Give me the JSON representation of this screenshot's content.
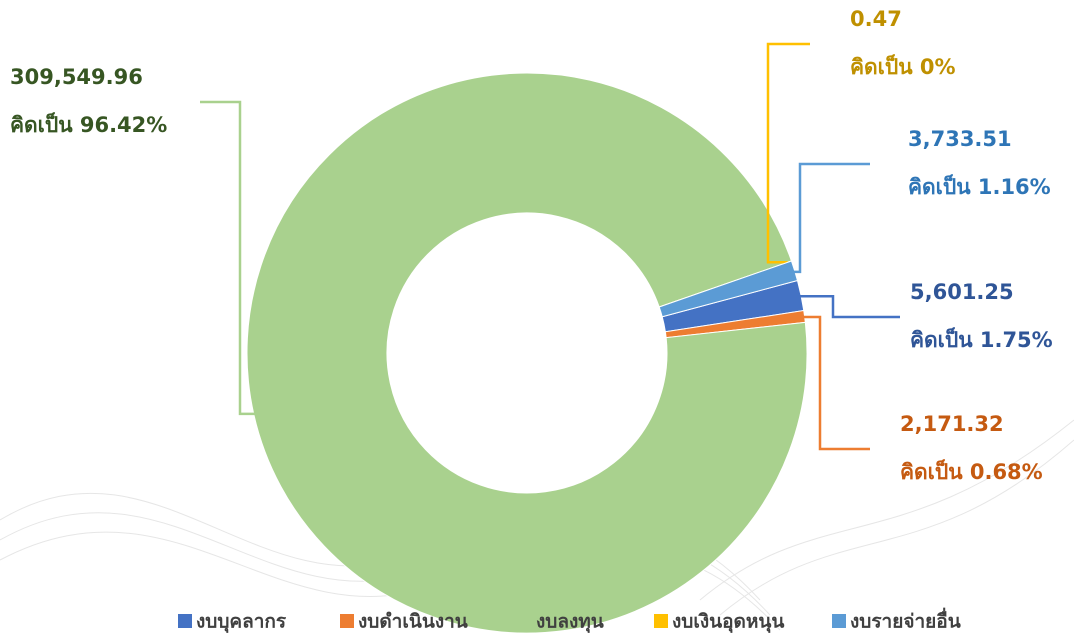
{
  "chart_data": {
    "type": "donut",
    "categories": [
      "งบบุคลากร",
      "งบดำเนินงาน",
      "งบลงทุน",
      "งบเงินอุดหนุน",
      "งบรายจ่ายอื่น"
    ],
    "values": [
      5601.25,
      2171.32,
      309549.96,
      0.47,
      3733.51
    ],
    "value_labels": [
      "5,601.25",
      "2,171.32",
      "309,549.96",
      "0.47",
      "3,733.51"
    ],
    "percents": [
      1.75,
      0.68,
      96.42,
      0,
      1.16
    ],
    "percent_labels": [
      "คิดเป็น 1.75%",
      "คิดเป็น 0.68%",
      "คิดเป็น 96.42%",
      "คิดเป็น 0%",
      "คิดเป็น 1.16%"
    ],
    "colors": [
      "#4472c4",
      "#ed7d31",
      "#a9d18e",
      "#ffc000",
      "#5b9bd5"
    ],
    "label_colors": [
      "#2f5597",
      "#c55a11",
      "#375623",
      "#bf9000",
      "#2e75b6"
    ],
    "legend": "bottom"
  }
}
